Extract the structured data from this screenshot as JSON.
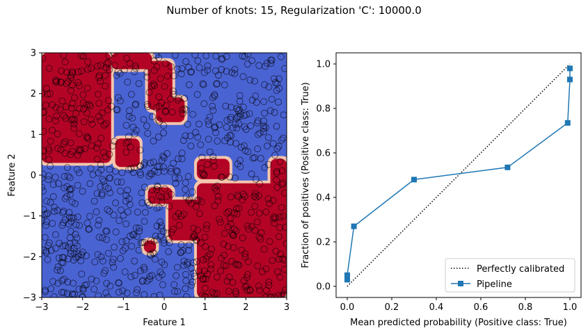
{
  "figure": {
    "suptitle": "Number of knots: 15, Regularization 'C': 10000.0"
  },
  "chart_data": [
    {
      "type": "heatmap",
      "description_kind": "decision boundary contour with scatter",
      "xlabel": "Feature 1",
      "ylabel": "Feature 2",
      "xlim": [
        -3,
        3
      ],
      "ylim": [
        -3,
        3
      ],
      "xticks": [
        "−3",
        "−2",
        "−1",
        "0",
        "1",
        "2",
        "3"
      ],
      "yticks": [
        "−3",
        "−2",
        "−1",
        "0",
        "1",
        "2",
        "3"
      ],
      "colormap": {
        "low": "#3b4cc0",
        "mid": "#dddddd",
        "high": "#b40426"
      },
      "class_true_color": "#b40426",
      "class_false_color": "#4a63d3",
      "marker_edge": "#000000",
      "regions_true": [
        {
          "x": [
            -3,
            -1.3
          ],
          "y": [
            0.3,
            3
          ]
        },
        {
          "x": [
            -1.3,
            -0.3
          ],
          "y": [
            2.6,
            3
          ]
        },
        {
          "x": [
            -0.4,
            0.2
          ],
          "y": [
            1.6,
            2.8
          ]
        },
        {
          "x": [
            -0.2,
            0.5
          ],
          "y": [
            1.3,
            1.9
          ]
        },
        {
          "x": [
            -1.2,
            -0.6
          ],
          "y": [
            0.2,
            0.9
          ]
        },
        {
          "x": [
            0.8,
            3
          ],
          "y": [
            -3,
            -0.2
          ]
        },
        {
          "x": [
            0.1,
            1.2
          ],
          "y": [
            -1.6,
            -0.6
          ]
        },
        {
          "x": [
            0.8,
            1.6
          ],
          "y": [
            -0.1,
            0.4
          ]
        },
        {
          "x": [
            2.6,
            3
          ],
          "y": [
            -0.6,
            0.4
          ]
        },
        {
          "x": [
            -0.5,
            -0.2
          ],
          "y": [
            -1.9,
            -1.6
          ]
        },
        {
          "x": [
            -0.4,
            0.2
          ],
          "y": [
            -0.7,
            -0.3
          ]
        }
      ],
      "points_x_range": [
        -3,
        3
      ],
      "points_y_range": [
        -3,
        3
      ]
    },
    {
      "type": "line",
      "xlabel": "Mean predicted probability (Positive class: True)",
      "ylabel": "Fraction of positives (Positive class: True)",
      "xlim": [
        -0.05,
        1.05
      ],
      "ylim": [
        -0.05,
        1.05
      ],
      "xticks": [
        "0.0",
        "0.2",
        "0.4",
        "0.6",
        "0.8",
        "1.0"
      ],
      "yticks": [
        "0.0",
        "0.2",
        "0.4",
        "0.6",
        "0.8",
        "1.0"
      ],
      "legend_position": "lower-right",
      "series": [
        {
          "name": "Perfectly calibrated",
          "style": "dotted",
          "color": "#000000",
          "x": [
            0,
            1
          ],
          "y": [
            0,
            1
          ]
        },
        {
          "name": "Pipeline",
          "style": "solid-square-markers",
          "color": "#1f77b4",
          "x": [
            0.0,
            0.0,
            0.03,
            0.3,
            0.72,
            0.99,
            1.0,
            1.0
          ],
          "y": [
            0.03,
            0.05,
            0.27,
            0.48,
            0.535,
            0.735,
            0.93,
            0.98
          ]
        }
      ]
    }
  ]
}
